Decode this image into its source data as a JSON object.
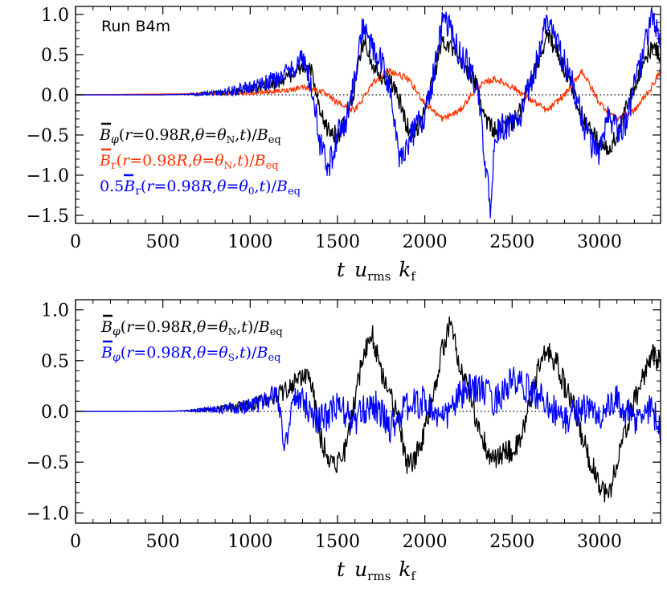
{
  "chart_data": [
    {
      "type": "line",
      "annotation": "Run B4m",
      "xlabel": "t u_rms k_f",
      "xlim": [
        0,
        3350
      ],
      "ylim": [
        -1.6,
        1.1
      ],
      "xticks": [
        "0",
        "500",
        "1000",
        "1500",
        "2000",
        "2500",
        "3000"
      ],
      "yticks": [
        "1.0",
        "0.5",
        "0.0",
        "−0.5",
        "−1.0",
        "−1.5"
      ],
      "zero_line": "dotted",
      "legend": [
        {
          "label": "B̄φ(r=0.98R,θ=θN,t)/Beq",
          "color": "#000000"
        },
        {
          "label": "B̄r(r=0.98R,θ=θN,t)/Beq",
          "color": "#ff3300"
        },
        {
          "label": "0.5B̄r(r=0.98R,θ=θ0,t)/Beq",
          "color": "#0000ff"
        }
      ],
      "series": [
        {
          "name": "B̄φ(r=0.98R,θ=θN,t)/Beq",
          "color": "#000000",
          "x": [
            0,
            500,
            700,
            900,
            1000,
            1100,
            1200,
            1300,
            1350,
            1400,
            1450,
            1500,
            1550,
            1600,
            1650,
            1700,
            1750,
            1800,
            1850,
            1900,
            1950,
            2000,
            2050,
            2100,
            2150,
            2200,
            2250,
            2300,
            2350,
            2400,
            2450,
            2500,
            2550,
            2600,
            2650,
            2700,
            2750,
            2800,
            2850,
            2900,
            2950,
            3000,
            3050,
            3100,
            3150,
            3200,
            3250,
            3300,
            3350
          ],
          "y": [
            0,
            0,
            0.01,
            0.04,
            0.07,
            0.12,
            0.2,
            0.35,
            0.3,
            -0.25,
            -0.45,
            -0.5,
            -0.35,
            0.1,
            0.7,
            0.4,
            0.25,
            0.2,
            -0.05,
            -0.4,
            -0.45,
            -0.2,
            0.2,
            0.7,
            0.6,
            0.4,
            0.3,
            0.1,
            -0.3,
            -0.45,
            -0.4,
            -0.35,
            -0.2,
            0.1,
            0.4,
            0.75,
            0.6,
            0.3,
            0.05,
            -0.25,
            -0.45,
            -0.6,
            -0.7,
            -0.5,
            -0.2,
            0.1,
            0.4,
            0.6,
            0.5
          ]
        },
        {
          "name": "B̄r(r=0.98R,θ=θN,t)/Beq",
          "color": "#ff3300",
          "x": [
            0,
            1000,
            1200,
            1300,
            1400,
            1500,
            1600,
            1700,
            1800,
            1900,
            2000,
            2100,
            2200,
            2300,
            2400,
            2500,
            2600,
            2700,
            2800,
            2900,
            3000,
            3100,
            3200,
            3300,
            3350
          ],
          "y": [
            0,
            0.02,
            0.05,
            0.1,
            0.05,
            -0.1,
            -0.2,
            0.15,
            0.3,
            0.2,
            -0.1,
            -0.3,
            -0.2,
            0.1,
            0.2,
            0.1,
            -0.05,
            -0.2,
            0,
            0.3,
            -0.1,
            -0.3,
            -0.2,
            0.1,
            0.3
          ]
        },
        {
          "name": "0.5B̄r(r=0.98R,θ=θ0,t)/Beq",
          "color": "#0000ff",
          "x": [
            0,
            500,
            700,
            900,
            1000,
            1100,
            1200,
            1300,
            1350,
            1400,
            1450,
            1500,
            1550,
            1600,
            1650,
            1700,
            1750,
            1800,
            1850,
            1900,
            1950,
            2000,
            2050,
            2100,
            2150,
            2200,
            2250,
            2300,
            2350,
            2380,
            2400,
            2450,
            2500,
            2550,
            2600,
            2650,
            2700,
            2750,
            2800,
            2850,
            2900,
            2950,
            3000,
            3050,
            3100,
            3150,
            3200,
            3250,
            3300,
            3350
          ],
          "y": [
            0,
            0,
            0.01,
            0.05,
            0.1,
            0.15,
            0.25,
            0.45,
            0.1,
            -0.6,
            -0.9,
            -0.5,
            -0.3,
            0.2,
            0.9,
            0.55,
            0.4,
            0.1,
            -0.8,
            -0.6,
            -0.4,
            -0.25,
            0.25,
            0.9,
            0.8,
            0.5,
            0.35,
            0.1,
            -0.9,
            -1.55,
            -0.5,
            -0.4,
            -0.35,
            -0.25,
            0.1,
            0.5,
            0.95,
            0.7,
            0.4,
            0.1,
            -0.3,
            -0.6,
            -0.75,
            -0.3,
            -0.45,
            -0.35,
            0.1,
            0.5,
            1.0,
            0.6
          ]
        }
      ]
    },
    {
      "type": "line",
      "xlabel": "t u_rms k_f",
      "xlim": [
        0,
        3350
      ],
      "ylim": [
        -1.1,
        1.1
      ],
      "xticks": [
        "0",
        "500",
        "1000",
        "1500",
        "2000",
        "2500",
        "3000"
      ],
      "yticks": [
        "1.0",
        "0.5",
        "0.0",
        "−0.5",
        "−1.0"
      ],
      "zero_line": "dotted",
      "legend": [
        {
          "label": "B̄φ(r=0.98R,θ=θN,t)/Beq",
          "color": "#000000"
        },
        {
          "label": "B̄φ(r=0.98R,θ=θS,t)/Beq",
          "color": "#0000ff"
        }
      ],
      "series": [
        {
          "name": "B̄φ(r=0.98R,θ=θN,t)/Beq",
          "color": "#000000",
          "x": [
            0,
            500,
            700,
            900,
            1000,
            1100,
            1200,
            1300,
            1350,
            1400,
            1450,
            1500,
            1550,
            1600,
            1650,
            1700,
            1750,
            1800,
            1850,
            1900,
            1950,
            2000,
            2050,
            2100,
            2150,
            2200,
            2250,
            2300,
            2350,
            2400,
            2450,
            2500,
            2550,
            2600,
            2650,
            2700,
            2750,
            2800,
            2850,
            2900,
            2950,
            3000,
            3050,
            3100,
            3150,
            3200,
            3250,
            3300,
            3350
          ],
          "y": [
            0,
            0,
            0.01,
            0.04,
            0.07,
            0.12,
            0.2,
            0.35,
            0.3,
            -0.25,
            -0.45,
            -0.5,
            -0.35,
            0.1,
            0.6,
            0.75,
            0.4,
            0.2,
            -0.1,
            -0.55,
            -0.45,
            -0.2,
            0.2,
            0.6,
            0.9,
            0.4,
            0.2,
            -0.1,
            -0.35,
            -0.5,
            -0.4,
            -0.4,
            -0.3,
            0.1,
            0.4,
            0.6,
            0.5,
            0.25,
            0.05,
            -0.25,
            -0.5,
            -0.7,
            -0.85,
            -0.5,
            -0.2,
            0.1,
            0.35,
            0.55,
            0.5
          ]
        },
        {
          "name": "B̄φ(r=0.98R,θ=θS,t)/Beq",
          "color": "#0000ff",
          "x": [
            0,
            500,
            700,
            900,
            1000,
            1100,
            1150,
            1200,
            1250,
            1300,
            1400,
            1500,
            1600,
            1700,
            1800,
            1900,
            2000,
            2100,
            2200,
            2300,
            2400,
            2500,
            2600,
            2700,
            2800,
            2900,
            3000,
            3100,
            3200,
            3300,
            3350
          ],
          "y": [
            0,
            0,
            0.01,
            0.03,
            0.05,
            0.1,
            0.2,
            -0.35,
            0.15,
            0.1,
            -0.1,
            0.05,
            -0.1,
            0.1,
            -0.15,
            0.05,
            0.1,
            -0.1,
            0.15,
            0.25,
            0.1,
            0.3,
            0.2,
            0.1,
            -0.1,
            0.05,
            -0.05,
            0.1,
            -0.1,
            0.05,
            -0.2
          ]
        }
      ]
    }
  ]
}
